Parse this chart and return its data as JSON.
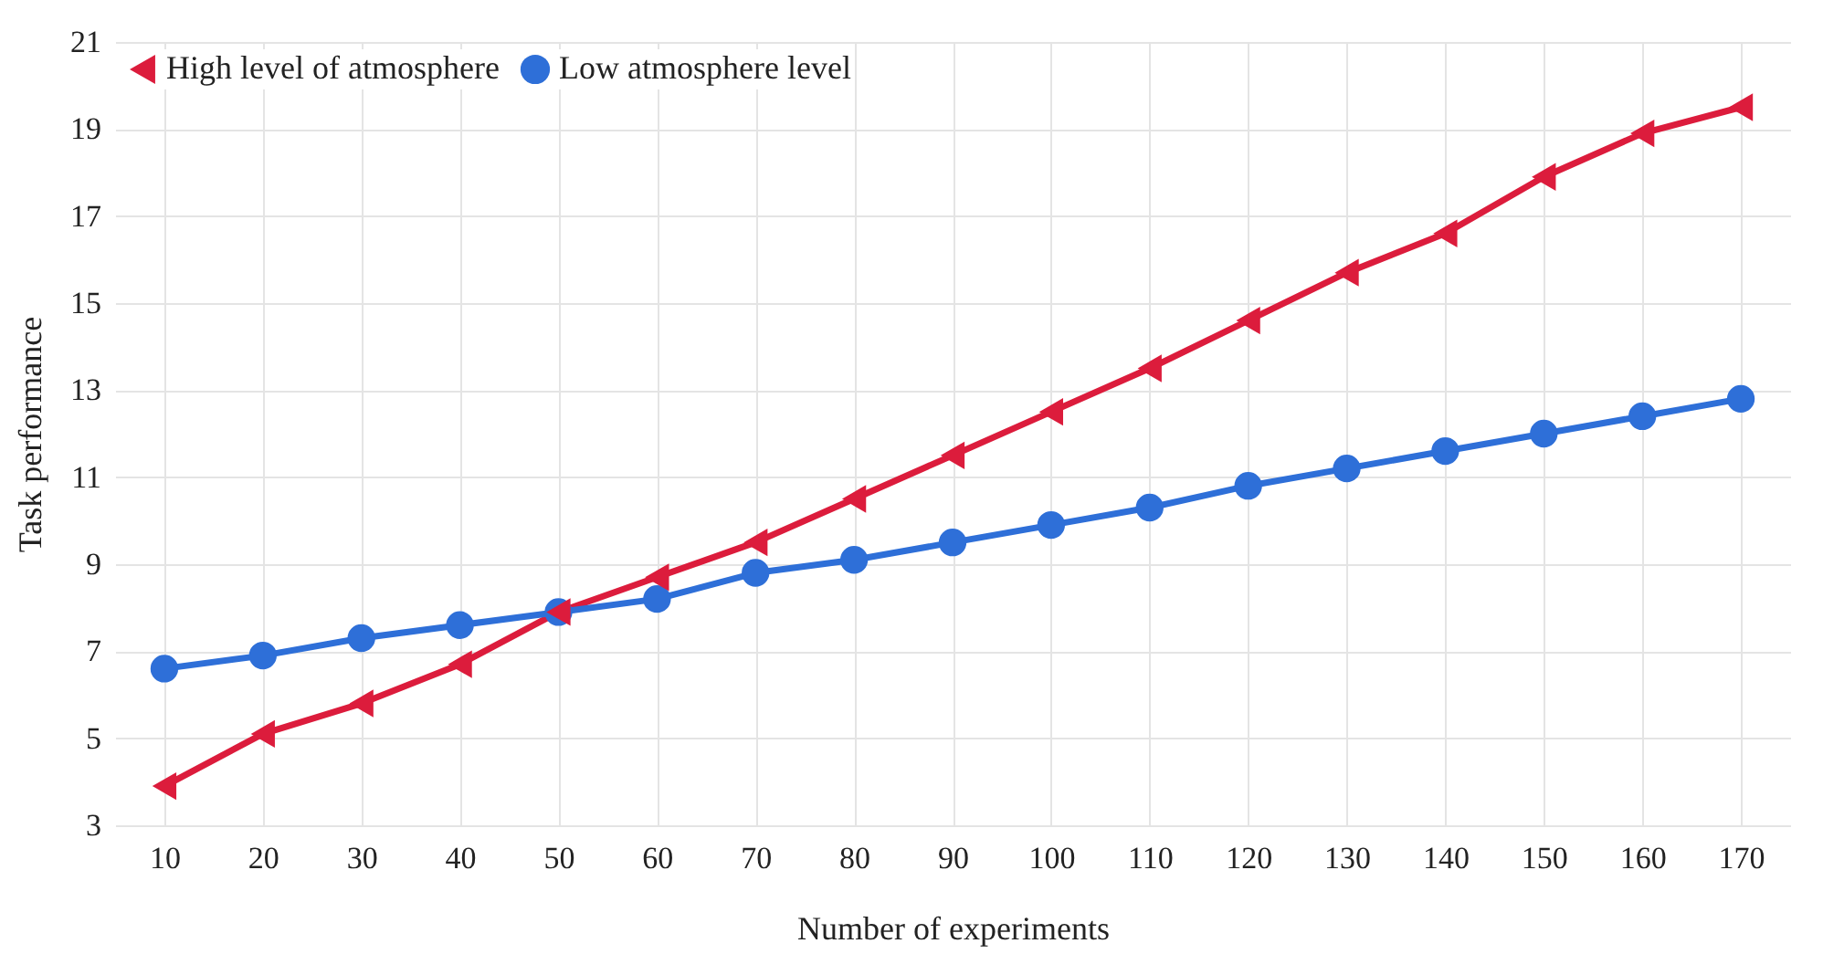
{
  "chart_data": {
    "type": "line",
    "xlabel": "Number of experiments",
    "ylabel": "Task performance",
    "categories": [
      "10",
      "20",
      "30",
      "40",
      "50",
      "60",
      "70",
      "80",
      "90",
      "100",
      "110",
      "120",
      "130",
      "140",
      "150",
      "160",
      "170"
    ],
    "series": [
      {
        "name": "High level of atmosphere",
        "color": "#dc1c3c",
        "marker": "triangle",
        "values": [
          3.9,
          5.1,
          5.8,
          6.7,
          7.9,
          8.7,
          9.5,
          10.5,
          11.5,
          12.5,
          13.5,
          14.6,
          15.7,
          16.6,
          17.9,
          18.9,
          19.5
        ]
      },
      {
        "name": "Low atmosphere level",
        "color": "#2e6fd8",
        "marker": "circle",
        "values": [
          6.6,
          6.9,
          7.3,
          7.6,
          7.9,
          8.2,
          8.8,
          9.1,
          9.5,
          9.9,
          10.3,
          10.8,
          11.2,
          11.6,
          12.0,
          12.4,
          12.8
        ]
      }
    ],
    "ylim": [
      3,
      21
    ],
    "yticks": [
      3,
      5,
      7,
      9,
      11,
      13,
      15,
      17,
      19,
      21
    ],
    "grid": true,
    "legend": "top left"
  }
}
